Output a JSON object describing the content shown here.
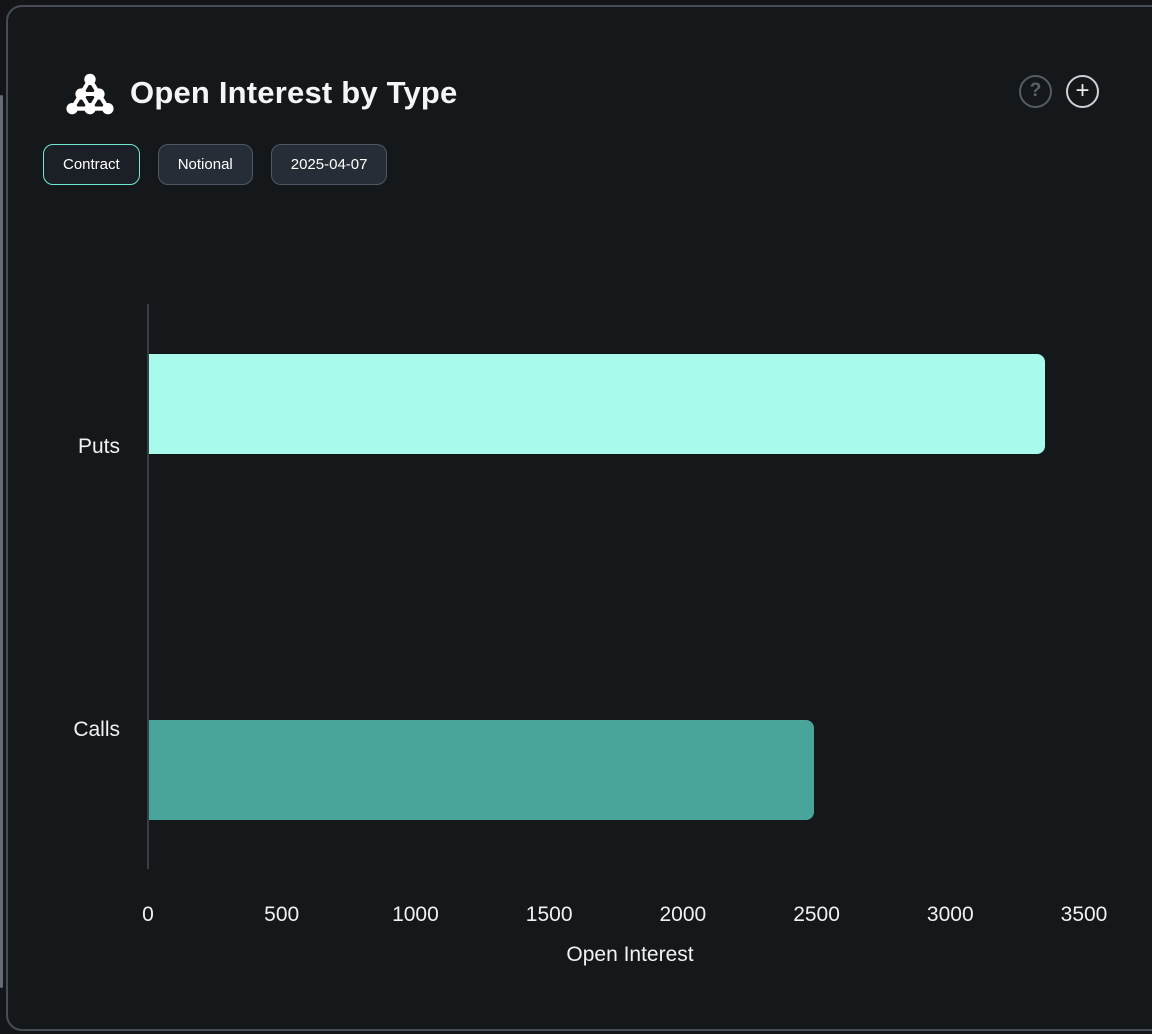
{
  "header": {
    "title": "Open Interest by Type",
    "help_glyph": "?",
    "add_glyph": "+"
  },
  "toolbar": {
    "chips": [
      {
        "label": "Contract",
        "active": true
      },
      {
        "label": "Notional",
        "active": false
      },
      {
        "label": "2025-04-07",
        "active": false
      }
    ]
  },
  "chart_data": {
    "type": "bar",
    "orientation": "horizontal",
    "categories": [
      "Puts",
      "Calls"
    ],
    "values": [
      3350,
      2485
    ],
    "title": "Open Interest by Type",
    "xlabel": "Open Interest",
    "ylabel": "",
    "xlim": [
      0,
      3500
    ],
    "x_ticks": [
      0,
      500,
      1000,
      1500,
      2000,
      2500,
      3000,
      3500
    ],
    "grid": false,
    "legend": "none",
    "bar_colors": [
      "#a7faec",
      "#49a49a"
    ]
  },
  "colors": {
    "background": "#131519",
    "card_background": "#15181b",
    "card_border": "#474d56",
    "accent_teal": "#6fe9d1",
    "puts_bar": "#a7faec",
    "calls_bar": "#49a49a",
    "axis_line": "#3a3e44",
    "text_primary": "#f4f5f7",
    "muted_icon": "#565c64"
  }
}
